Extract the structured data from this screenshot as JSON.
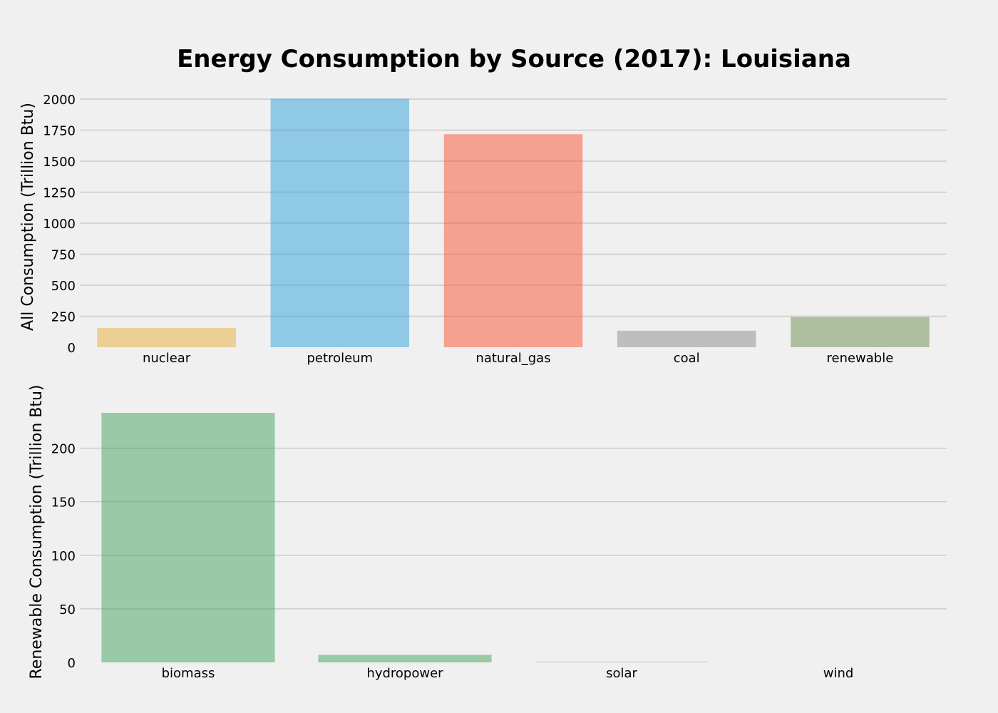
{
  "title": "Energy Consumption by Source (2017): Louisiana",
  "chart_data": [
    {
      "type": "bar",
      "ylabel": "All Consumption (Trillion Btu)",
      "xlabel": "",
      "categories": [
        "nuclear",
        "petroleum",
        "natural_gas",
        "coal",
        "renewable"
      ],
      "values": [
        155,
        2003,
        1717,
        133,
        243
      ],
      "colors": [
        "#e5ae38",
        "#30a2da",
        "#fc4f30",
        "#8b8b8b",
        "#6d904f"
      ],
      "ylim": [
        0,
        2000
      ],
      "yticks": [
        0,
        250,
        500,
        750,
        1000,
        1250,
        1500,
        1750,
        2000
      ],
      "grid": true
    },
    {
      "type": "bar",
      "ylabel": "Renewable Consumption (Trillion Btu)",
      "xlabel": "",
      "categories": [
        "biomass",
        "hydropower",
        "solar",
        "wind"
      ],
      "values": [
        233,
        7,
        0.5,
        0
      ],
      "colors": [
        "#41a45a",
        "#41a45a",
        "#41a45a",
        "#41a45a"
      ],
      "ylim": [
        0,
        233
      ],
      "yticks": [
        0,
        50,
        100,
        150,
        200
      ],
      "grid": true
    }
  ]
}
